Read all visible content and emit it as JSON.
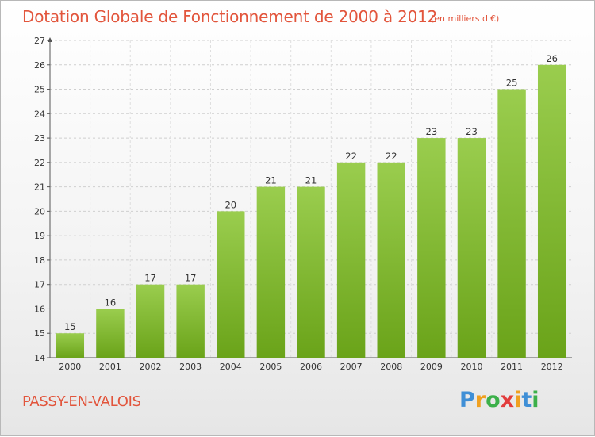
{
  "chart_data": {
    "type": "bar",
    "title": "Dotation Globale de Fonctionnement de 2000 à 2012",
    "unit_label": "(en milliers d'€)",
    "categories": [
      "2000",
      "2001",
      "2002",
      "2003",
      "2004",
      "2005",
      "2006",
      "2007",
      "2008",
      "2009",
      "2010",
      "2011",
      "2012"
    ],
    "values": [
      15,
      16,
      17,
      17,
      20,
      21,
      21,
      22,
      22,
      23,
      23,
      25,
      26
    ],
    "ylim": [
      14,
      27
    ],
    "yticks": [
      14,
      15,
      16,
      17,
      18,
      19,
      20,
      21,
      22,
      23,
      24,
      25,
      26,
      27
    ],
    "grid": true,
    "bar_color_top": "#9acd4e",
    "bar_color_bottom": "#6aa319"
  },
  "footer": {
    "commune": "PASSY-EN-VALOIS",
    "logo": {
      "letters": [
        "P",
        "r",
        "o",
        "x",
        "i",
        "t",
        "i"
      ],
      "colors": [
        "#3f8fd6",
        "#f0a020",
        "#3cb04a",
        "#e23c3c",
        "#f0a020",
        "#3f8fd6",
        "#3cb04a"
      ]
    }
  }
}
